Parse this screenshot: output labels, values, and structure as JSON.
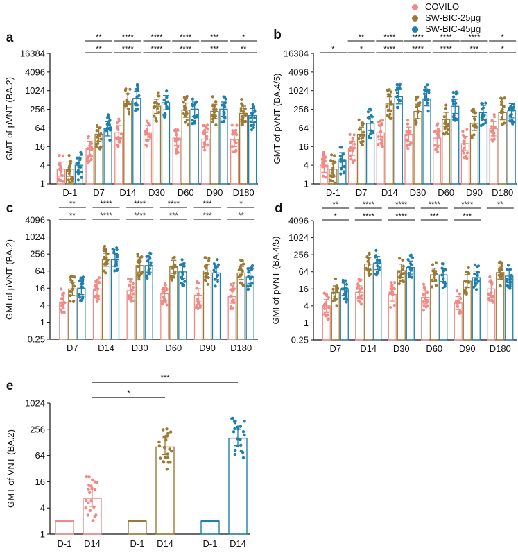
{
  "legend": [
    {
      "name": "COVILO",
      "color": "#f08a86"
    },
    {
      "name": "SW-BIC-25μg",
      "color": "#9a7a36"
    },
    {
      "name": "SW-BIC-45μg",
      "color": "#1f7fad"
    }
  ],
  "chart_data": [
    {
      "panel": "a",
      "type": "bar",
      "log_base": 2,
      "ylabel": "GMT of pVNT (BA.2)",
      "yticks": [
        "1",
        "4",
        "16",
        "64",
        "256",
        "1024",
        "4096",
        "16384"
      ],
      "ylim": [
        1,
        16384
      ],
      "categories": [
        "D-1",
        "D7",
        "D14",
        "D30",
        "D60",
        "D90",
        "D180"
      ],
      "series": [
        {
          "name": "COVILO",
          "values": [
            3,
            14,
            45,
            45,
            30,
            28,
            27
          ]
        },
        {
          "name": "SW-BIC-25μg",
          "values": [
            3,
            40,
            480,
            320,
            240,
            220,
            190
          ]
        },
        {
          "name": "SW-BIC-45μg",
          "values": [
            4,
            60,
            580,
            420,
            260,
            260,
            160
          ]
        }
      ],
      "significance": [
        [
          null,
          null
        ],
        [
          "**",
          "**"
        ],
        [
          "****",
          "****"
        ],
        [
          "****",
          "****"
        ],
        [
          "****",
          "****"
        ],
        [
          "***",
          "***"
        ],
        [
          "*",
          "**"
        ]
      ]
    },
    {
      "panel": "b",
      "type": "bar",
      "log_base": 2,
      "ylabel": "GMT of pVNT (BA.4/5)",
      "yticks": [
        "1",
        "4",
        "16",
        "64",
        "256",
        "1024",
        "4096",
        "16384"
      ],
      "ylim": [
        1,
        16384
      ],
      "categories": [
        "D-1",
        "D7",
        "D14",
        "D30",
        "D60",
        "D90",
        "D180"
      ],
      "series": [
        {
          "name": "COVILO",
          "values": [
            4,
            14,
            45,
            40,
            30,
            20,
            60
          ]
        },
        {
          "name": "SW-BIC-25μg",
          "values": [
            3,
            40,
            380,
            220,
            120,
            90,
            200
          ]
        },
        {
          "name": "SW-BIC-45μg",
          "values": [
            6,
            90,
            650,
            560,
            320,
            200,
            230
          ]
        }
      ],
      "significance": [
        [
          null,
          "*"
        ],
        [
          "**",
          "*"
        ],
        [
          "****",
          "****"
        ],
        [
          "****",
          "****"
        ],
        [
          "****",
          "****"
        ],
        [
          "****",
          "***"
        ],
        [
          "*",
          "*"
        ]
      ]
    },
    {
      "panel": "c",
      "type": "bar",
      "log_base": 2,
      "ylabel": "GMI of pVNT (BA.2)",
      "yticks": [
        "0.25",
        "1",
        "4",
        "16",
        "64",
        "256",
        "1024",
        "4096"
      ],
      "ylim": [
        0.25,
        4096
      ],
      "categories": [
        "D7",
        "D14",
        "D30",
        "D60",
        "D90",
        "D180"
      ],
      "series": [
        {
          "name": "COVILO",
          "values": [
            5,
            15,
            13,
            10,
            9,
            8
          ]
        },
        {
          "name": "SW-BIC-25μg",
          "values": [
            15,
            160,
            100,
            90,
            65,
            55
          ]
        },
        {
          "name": "SW-BIC-45μg",
          "values": [
            16,
            160,
            100,
            60,
            55,
            40
          ]
        }
      ],
      "significance": [
        [
          "**",
          "**"
        ],
        [
          "****",
          "****"
        ],
        [
          "****",
          "****"
        ],
        [
          "****",
          "***"
        ],
        [
          "***",
          "***"
        ],
        [
          "*",
          "**"
        ]
      ]
    },
    {
      "panel": "d",
      "type": "bar",
      "log_base": 2,
      "ylabel": "GMI of pVNT (BA.4/5)",
      "yticks": [
        "0.25",
        "1",
        "4",
        "16",
        "64",
        "256",
        "1024",
        "4096"
      ],
      "ylim": [
        0.25,
        4096
      ],
      "categories": [
        "D7",
        "D14",
        "D30",
        "D60",
        "D90",
        "D180"
      ],
      "series": [
        {
          "name": "COVILO",
          "values": [
            4,
            12,
            10,
            8,
            5,
            16
          ]
        },
        {
          "name": "SW-BIC-25μg",
          "values": [
            12,
            120,
            70,
            50,
            30,
            60
          ]
        },
        {
          "name": "SW-BIC-45μg",
          "values": [
            16,
            130,
            90,
            50,
            40,
            45
          ]
        }
      ],
      "significance": [
        [
          "**",
          "*"
        ],
        [
          "****",
          "****"
        ],
        [
          "****",
          "****"
        ],
        [
          "****",
          "***"
        ],
        [
          "****",
          "***"
        ],
        [
          "**",
          null
        ]
      ]
    },
    {
      "panel": "e",
      "type": "bar",
      "log_base": 2,
      "ylabel": "GMT of VNT (BA.2)",
      "yticks": [
        "1",
        "4",
        "16",
        "64",
        "256",
        "1024"
      ],
      "ylim": [
        1,
        1024
      ],
      "groups": [
        {
          "name": "COVILO",
          "labels": [
            "D-1",
            "D14"
          ],
          "values": [
            2,
            6.5
          ]
        },
        {
          "name": "SW-BIC-25μg",
          "labels": [
            "D-1",
            "D14"
          ],
          "values": [
            2,
            100
          ]
        },
        {
          "name": "SW-BIC-45μg",
          "labels": [
            "D-1",
            "D14"
          ],
          "values": [
            2,
            160
          ]
        }
      ],
      "comparisons": [
        {
          "label": "***",
          "from": "COVILO D14",
          "to": "SW-BIC-45μg D14"
        },
        {
          "label": "*",
          "from": "COVILO D14",
          "to": "SW-BIC-25μg D14"
        }
      ]
    }
  ]
}
